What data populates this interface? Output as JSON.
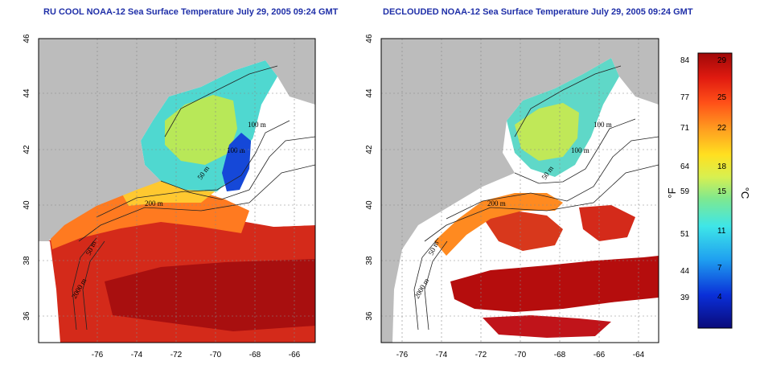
{
  "titles": {
    "left": "RU COOL NOAA-12 Sea Surface Temperature July 29, 2005 09:24 GMT",
    "right": "DECLOUDED NOAA-12 Sea Surface Temperature July 29, 2005 09:24 GMT"
  },
  "axes": {
    "lon_ticks": [
      "-76",
      "-74",
      "-72",
      "-70",
      "-68",
      "-66",
      "-64"
    ],
    "lat_ticks": [
      "46",
      "44",
      "42",
      "40",
      "38",
      "36"
    ]
  },
  "contours": {
    "left": [
      "100 m",
      "100 m",
      "50 m",
      "200 m",
      "50 m",
      "2000 m"
    ],
    "right": [
      "100 m",
      "100 m",
      "50 m",
      "200 m",
      "50 m",
      "2000 m"
    ]
  },
  "colorbar": {
    "unit_f": "°F",
    "unit_c": "°C",
    "ticks_f": [
      "84",
      "77",
      "71",
      "64",
      "59",
      "51",
      "44",
      "39"
    ],
    "ticks_c": [
      "29",
      "25",
      "22",
      "18",
      "15",
      "11",
      "7",
      "4"
    ]
  },
  "colors": {
    "title": "#1f2fa8",
    "land": "#bcbcbc",
    "cloud": "#ffffff",
    "warm": "#d42a1a",
    "hot": "#b50d0d",
    "cool": "#1565d8"
  }
}
